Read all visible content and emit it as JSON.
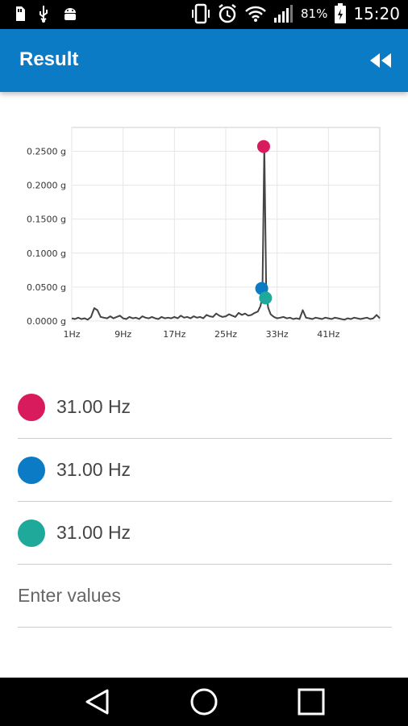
{
  "status_bar": {
    "icons_left": [
      "sd-card-icon",
      "usb-icon",
      "android-icon"
    ],
    "icons_right": [
      "vibrate-icon",
      "alarm-icon",
      "wifi-icon",
      "signal-icon",
      "battery-charging-icon"
    ],
    "battery": "81%",
    "time": "15:20"
  },
  "app_bar": {
    "title": "Result",
    "rewind_icon": "rewind-icon"
  },
  "chart_data": {
    "type": "line",
    "title": "",
    "xlabel": "",
    "ylabel": "",
    "x_ticks": [
      "1Hz",
      "9Hz",
      "17Hz",
      "25Hz",
      "33Hz",
      "41Hz"
    ],
    "y_ticks": [
      "0.0000 g",
      "0.0500 g",
      "0.1000 g",
      "0.1500 g",
      "0.2000 g",
      "0.2500 g"
    ],
    "xlim": [
      1,
      49
    ],
    "ylim": [
      0,
      0.285
    ],
    "grid": true,
    "series": [
      {
        "x": [
          1,
          1.5,
          2,
          2.5,
          3,
          3.5,
          4,
          4.5,
          5,
          5.5,
          6,
          6.5,
          7,
          7.5,
          8,
          8.5,
          9,
          9.5,
          10,
          10.5,
          11,
          11.5,
          12,
          12.5,
          13,
          13.5,
          14,
          14.5,
          15,
          15.5,
          16,
          16.5,
          17,
          17.5,
          18,
          18.5,
          19,
          19.5,
          20,
          20.5,
          21,
          21.5,
          22,
          22.5,
          23,
          23.5,
          24,
          24.5,
          25,
          25.5,
          26,
          26.5,
          27,
          27.5,
          28,
          28.5,
          29,
          29.5,
          30,
          30.4,
          30.7,
          31,
          31.3,
          31.6,
          32,
          32.5,
          33,
          33.5,
          34,
          34.5,
          35,
          35.5,
          36,
          36.5,
          37,
          37.5,
          38,
          38.5,
          39,
          39.5,
          40,
          40.5,
          41,
          41.5,
          42,
          42.5,
          43,
          43.5,
          44,
          44.5,
          45,
          45.5,
          46,
          46.5,
          47,
          47.5,
          48,
          48.5,
          49
        ],
        "y": [
          0.004,
          0.003,
          0.005,
          0.003,
          0.004,
          0.002,
          0.006,
          0.019,
          0.016,
          0.006,
          0.005,
          0.004,
          0.007,
          0.004,
          0.006,
          0.008,
          0.004,
          0.003,
          0.006,
          0.004,
          0.005,
          0.003,
          0.007,
          0.005,
          0.004,
          0.006,
          0.004,
          0.003,
          0.006,
          0.004,
          0.005,
          0.004,
          0.006,
          0.004,
          0.008,
          0.005,
          0.006,
          0.004,
          0.007,
          0.005,
          0.006,
          0.004,
          0.009,
          0.007,
          0.006,
          0.011,
          0.008,
          0.006,
          0.007,
          0.01,
          0.008,
          0.006,
          0.012,
          0.009,
          0.011,
          0.008,
          0.009,
          0.012,
          0.014,
          0.022,
          0.035,
          0.26,
          0.05,
          0.02,
          0.01,
          0.006,
          0.004,
          0.005,
          0.006,
          0.004,
          0.005,
          0.003,
          0.004,
          0.003,
          0.016,
          0.005,
          0.004,
          0.003,
          0.005,
          0.004,
          0.003,
          0.005,
          0.004,
          0.003,
          0.005,
          0.004,
          0.003,
          0.002,
          0.004,
          0.003,
          0.005,
          0.004,
          0.003,
          0.004,
          0.005,
          0.003,
          0.004,
          0.009,
          0.004
        ]
      }
    ],
    "markers": [
      {
        "x": 30.9,
        "y": 0.257,
        "color": "#d81b5c"
      },
      {
        "x": 30.6,
        "y": 0.048,
        "color": "#0b7bc6"
      },
      {
        "x": 31.2,
        "y": 0.034,
        "color": "#1ea99a"
      }
    ]
  },
  "results": [
    {
      "value": "31.00 Hz",
      "color": "#d81b5c"
    },
    {
      "value": "31.00 Hz",
      "color": "#0b7bc6"
    },
    {
      "value": "31.00 Hz",
      "color": "#1ea99a"
    }
  ],
  "enter_values": "Enter values",
  "nav_bar": {
    "icons": [
      "back-icon",
      "home-icon",
      "recents-icon"
    ]
  }
}
